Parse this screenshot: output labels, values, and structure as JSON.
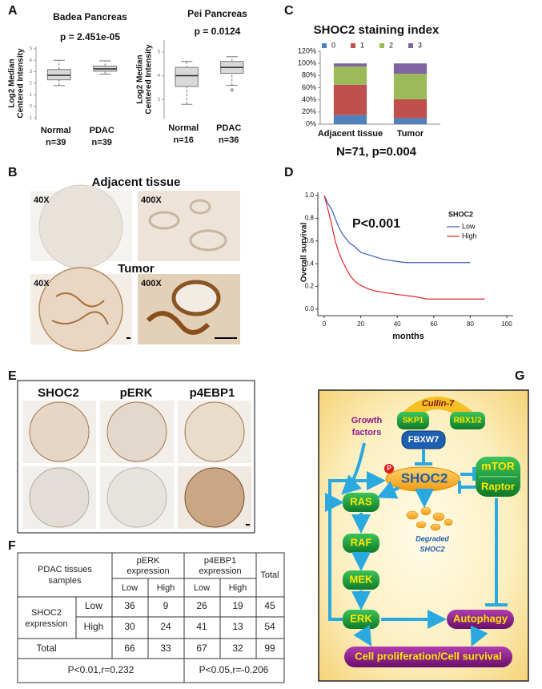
{
  "panel_labels": [
    "A",
    "B",
    "C",
    "D",
    "E",
    "F",
    "G"
  ],
  "chart_data": [
    {
      "type": "box",
      "title": "Badea Pancreas",
      "subtitle": "p = 2.451e-05",
      "y_label": [
        "Log2 Median",
        "Centered Intensity"
      ],
      "categories": [
        "Normal",
        "PDAC"
      ],
      "category_counts": [
        "n=39",
        "n=39"
      ],
      "values": [
        [
          1.8,
          2.3,
          2.7,
          3.2,
          4.0
        ],
        [
          2.8,
          3.05,
          3.25,
          3.5,
          3.95
        ]
      ],
      "color": "#d9d9d9",
      "ylim": [
        -1.2,
        5.2
      ],
      "yticks": [
        -1,
        0,
        1,
        2,
        3,
        4,
        5
      ]
    },
    {
      "type": "box",
      "title": "Pei Pancreas",
      "subtitle": "p = 0.0124",
      "y_label": [
        "Log2 Median",
        "Centered Intensity"
      ],
      "categories": [
        "Normal",
        "PDAC"
      ],
      "category_counts": [
        "n=16",
        "n=36"
      ],
      "values": [
        [
          2.8,
          3.55,
          4.0,
          4.35,
          4.6
        ],
        [
          3.6,
          4.1,
          4.35,
          4.6,
          4.8
        ]
      ],
      "outliers": [
        [],
        [
          3.4
        ]
      ],
      "color": "#d9d9d9",
      "ylim": [
        2.2,
        5.5
      ],
      "yticks": [
        3,
        4,
        5
      ]
    },
    {
      "type": "bar",
      "stacked": true,
      "title": "SHOC2 staining index",
      "annotation": "N=71, p=0.004",
      "categories": [
        "Adjacent tissue",
        "Tumor"
      ],
      "series": [
        {
          "name": "0",
          "color": "#4f81bd",
          "values": [
            15,
            10
          ]
        },
        {
          "name": "1",
          "color": "#c0504d",
          "values": [
            50,
            31
          ]
        },
        {
          "name": "2",
          "color": "#9bbb59",
          "values": [
            30,
            42
          ]
        },
        {
          "name": "3",
          "color": "#8064a2",
          "values": [
            5,
            17
          ]
        }
      ],
      "ylim": [
        0,
        120
      ],
      "yticks": [
        {
          "value": 0,
          "label": "0%"
        },
        {
          "value": 20,
          "label": "20%"
        },
        {
          "value": 40,
          "label": "40%"
        },
        {
          "value": 60,
          "label": "60%"
        },
        {
          "value": 80,
          "label": "80%"
        },
        {
          "value": 100,
          "label": "100%"
        },
        {
          "value": 120,
          "label": "120%"
        }
      ],
      "legend": "top"
    },
    {
      "type": "line",
      "x_label": "months",
      "y_label": "Overall survival",
      "annotation": "P<0.001",
      "legend_title": "SHOC2",
      "series": [
        {
          "name": "Low",
          "color": "#3b5bb5",
          "x": [
            0,
            2,
            4,
            6,
            8,
            10,
            12,
            14,
            16,
            18,
            20,
            24,
            28,
            32,
            36,
            40,
            45,
            50,
            60,
            70,
            80
          ],
          "values": [
            1.0,
            0.93,
            0.88,
            0.8,
            0.72,
            0.66,
            0.62,
            0.58,
            0.56,
            0.53,
            0.5,
            0.48,
            0.46,
            0.44,
            0.43,
            0.42,
            0.41,
            0.41,
            0.41,
            0.41,
            0.41
          ]
        },
        {
          "name": "High",
          "color": "#e0262b",
          "x": [
            0,
            2,
            4,
            6,
            8,
            10,
            12,
            14,
            16,
            18,
            20,
            24,
            28,
            32,
            36,
            40,
            45,
            50,
            56,
            60,
            70,
            80,
            88
          ],
          "values": [
            1.0,
            0.88,
            0.75,
            0.6,
            0.5,
            0.42,
            0.36,
            0.3,
            0.26,
            0.23,
            0.21,
            0.18,
            0.16,
            0.15,
            0.14,
            0.13,
            0.12,
            0.11,
            0.09,
            0.09,
            0.09,
            0.09,
            0.09
          ]
        }
      ],
      "xlim": [
        0,
        100
      ],
      "xticks": [
        0,
        20,
        40,
        60,
        80,
        100
      ],
      "ylim": [
        0,
        1.0
      ],
      "yticks": [
        {
          "value": 0,
          "label": "0.0"
        },
        0.2,
        0.4,
        0.6,
        0.8,
        {
          "value": 1.0,
          "label": "1.0"
        }
      ],
      "legend": "right"
    }
  ],
  "images": {
    "B": {
      "adjacent_title": "Adjacent tissue",
      "tumor_title": "Tumor",
      "magnifications": [
        "40X",
        "400X",
        "40X",
        "400X"
      ]
    },
    "E": {
      "headers": [
        "SHOC2",
        "pERK",
        "p4EBP1"
      ]
    }
  },
  "table": {
    "header": {
      "row_label": [
        "PDAC tissues",
        "samples"
      ],
      "groups": [
        [
          "pERK",
          "expression"
        ],
        [
          "p4EBP1",
          "expression"
        ]
      ],
      "total": "Total",
      "levels": [
        "Low",
        "High",
        "Low",
        "High"
      ]
    },
    "row_group": [
      "SHOC2",
      "expression"
    ],
    "rows": [
      [
        "Low",
        36,
        9,
        26,
        19,
        45
      ],
      [
        "High",
        30,
        24,
        41,
        13,
        54
      ]
    ],
    "total_row": [
      "Total",
      66,
      33,
      67,
      32,
      99
    ],
    "stats": [
      "P<0.01,r=0.232",
      "P<0.05,r=-0.206"
    ]
  },
  "diagram": {
    "complex": "Cullin-7",
    "adaptors": [
      "SKP1",
      "RBX1/2"
    ],
    "receptor": "FBXW7",
    "stimulus": [
      "Growth",
      "factors"
    ],
    "target": "SHOC2",
    "phospho": "P",
    "mtor_complex": [
      "mTOR",
      "Raptor"
    ],
    "cascade": [
      "RAS",
      "RAF",
      "MEK",
      "ERK"
    ],
    "degraded": [
      "Degraded",
      "SHOC2"
    ],
    "autophagy": "Autophagy",
    "outcome": "Cell proliferation/Cell survival"
  }
}
